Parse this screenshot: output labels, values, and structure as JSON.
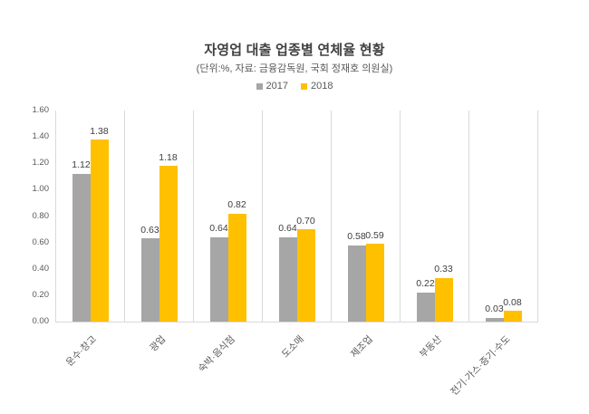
{
  "chart_data": {
    "type": "bar",
    "title": "자영업 대출 업종별 연체율 현황",
    "subtitle": "(단위:%, 자료: 금융감독원, 국회 정재호 의원실)",
    "categories": [
      "운수·창고",
      "광업",
      "숙박·음식점",
      "도소매",
      "제조업",
      "부동산",
      "전기·가스·증기·수도"
    ],
    "series": [
      {
        "name": "2017",
        "color": "#a6a6a6",
        "values": [
          1.12,
          0.63,
          0.64,
          0.64,
          0.58,
          0.22,
          0.03
        ]
      },
      {
        "name": "2018",
        "color": "#ffc000",
        "values": [
          1.38,
          1.18,
          0.82,
          0.7,
          0.59,
          0.33,
          0.08
        ]
      }
    ],
    "xlabel": "",
    "ylabel": "",
    "ylim": [
      0,
      1.6
    ],
    "ytick_step": 0.2,
    "ytick_labels": [
      "0.00",
      "0.20",
      "0.40",
      "0.60",
      "0.80",
      "1.00",
      "1.20",
      "1.40",
      "1.60"
    ],
    "value_label_decimals": 2,
    "grid": "vertical-category-separators-only",
    "legend_position": "top-center",
    "colors": {
      "background": "#ffffff",
      "separator_line": "#d9d9d9",
      "axis_text": "#595959",
      "value_label_text": "#404040",
      "title_text": "#404040"
    }
  }
}
